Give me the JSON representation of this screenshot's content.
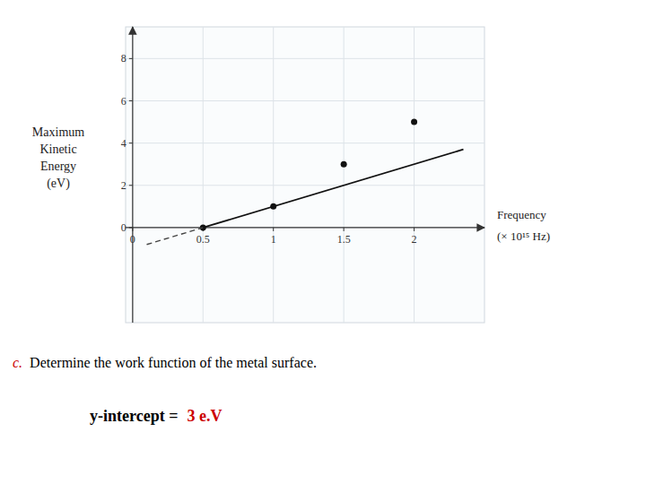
{
  "chart_data": {
    "type": "scatter",
    "annotations": [
      {
        "text": "c.",
        "color": "#cc0000"
      },
      {
        "text": "Determine the work function of the metal surface."
      },
      {
        "text": "y-intercept ="
      },
      {
        "text": "3 e.V",
        "color": "#cc0000"
      }
    ],
    "ylabel": [
      "Maximum",
      "Kinetic",
      "Energy",
      "(eV)"
    ],
    "xlabel": [
      "Frequency",
      "(× 10¹⁵ Hz)"
    ],
    "xlim": [
      -0.05,
      2.5
    ],
    "ylim": [
      -4.5,
      9.5
    ],
    "xticks": [
      0,
      0.5,
      1,
      1.5,
      2
    ],
    "yticks": [
      0,
      2,
      4,
      6,
      8
    ],
    "grid": true,
    "series": [
      {
        "type": "scatter",
        "x": [
          0.5,
          1.0,
          1.5,
          2.0
        ],
        "values": [
          0,
          1,
          3,
          5
        ],
        "color": "#111111",
        "marker": "circle"
      },
      {
        "type": "line",
        "x": [
          0.5,
          2.35
        ],
        "values": [
          0,
          3.7
        ],
        "color": "#111111",
        "line_style": "solid"
      },
      {
        "type": "line",
        "x": [
          0.1,
          0.5
        ],
        "values": [
          -0.8,
          0
        ],
        "color": "#444444",
        "line_style": "dashed"
      }
    ]
  }
}
